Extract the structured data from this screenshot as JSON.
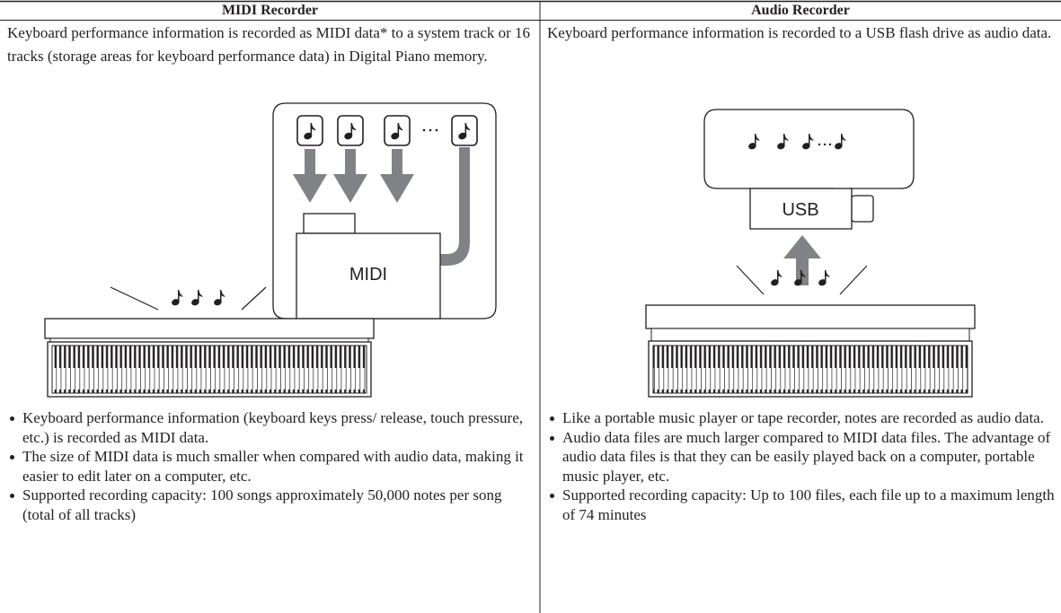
{
  "table": {
    "headers": [
      "MIDI Recorder",
      "Audio Recorder"
    ],
    "columns": [
      {
        "description": "Keyboard performance information is recorded as MIDI data* to a system track or 16 tracks (storage areas for keyboard performance data) in Digital Piano memory.",
        "illustration_label": "MIDI",
        "bullets": [
          "Keyboard performance information (keyboard keys press/ release, touch pressure, etc.) is recorded as MIDI data.",
          "The size of MIDI data is much smaller when compared with audio data, making it easier to edit later on a computer, etc.",
          "Supported recording capacity: 100 songs approximately 50,000 notes per song (total of all tracks)"
        ]
      },
      {
        "description": "Keyboard performance information is recorded to a USB flash drive as audio data.",
        "illustration_label": "USB",
        "bullets": [
          "Like a portable music player or tape recorder, notes are recorded as audio data.",
          "Audio data files are much larger compared to MIDI data files. The advantage of audio data files is that they can be easily played back on a computer, portable music player, etc.",
          "Supported recording capacity: Up to 100 files, each file up to a maximum length of 74 minutes"
        ]
      }
    ]
  }
}
